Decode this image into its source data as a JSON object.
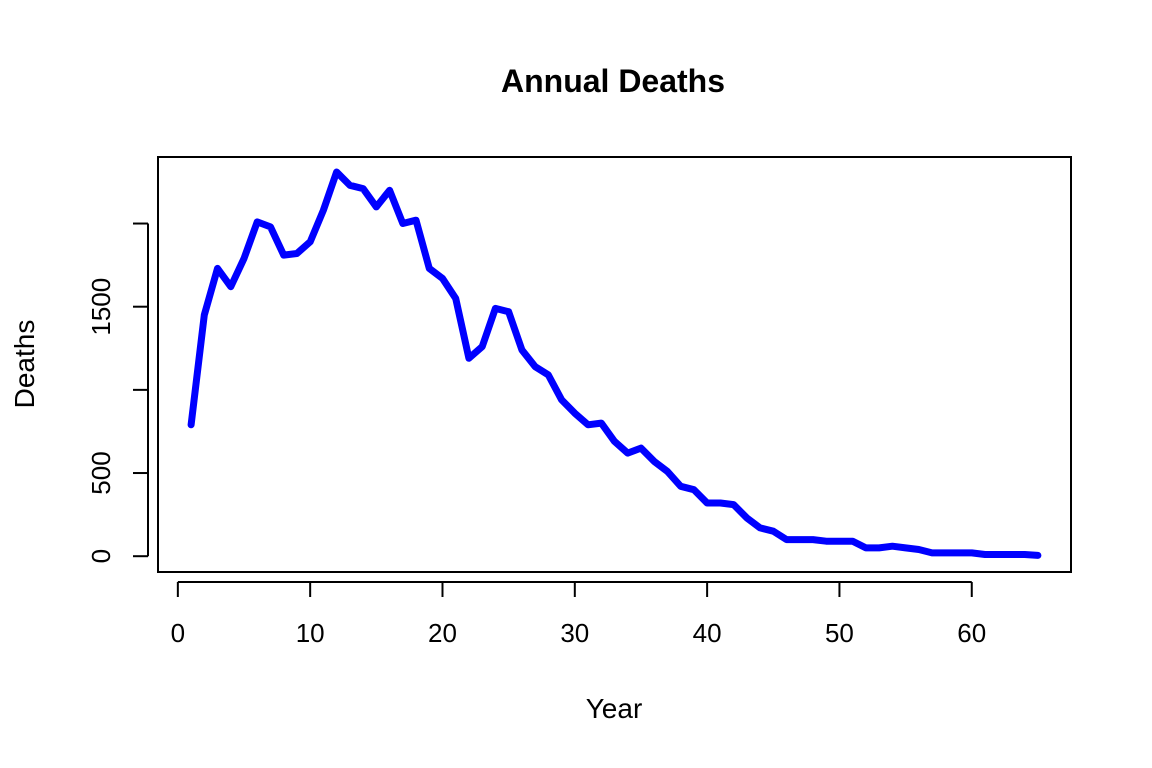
{
  "chart_data": {
    "type": "line",
    "title": "Annual Deaths",
    "xlabel": "Year",
    "ylabel": "Deaths",
    "xlim": [
      -1.5,
      67.5
    ],
    "ylim": [
      -95,
      2400
    ],
    "x_ticks": [
      0,
      10,
      20,
      30,
      40,
      50,
      60
    ],
    "y_ticks": [
      0,
      500,
      1000,
      1500,
      2000
    ],
    "y_tick_labels": [
      "0",
      "500",
      "",
      "1500",
      ""
    ],
    "line_color": "#0000ff",
    "grid": false,
    "series": [
      {
        "x": [
          1,
          2,
          3,
          4,
          5,
          6,
          7,
          8,
          9,
          10,
          11,
          12,
          13,
          14,
          15,
          16,
          17,
          18,
          19,
          20,
          21,
          22,
          23,
          24,
          25,
          26,
          27,
          28,
          29,
          30,
          31,
          32,
          33,
          34,
          35,
          36,
          37,
          38,
          39,
          40,
          41,
          42,
          43,
          44,
          45,
          46,
          47,
          48,
          49,
          50,
          51,
          52,
          53,
          54,
          55,
          56,
          57,
          58,
          59,
          60,
          61,
          62,
          63,
          64,
          65
        ],
        "y": [
          790,
          1450,
          1730,
          1620,
          1790,
          2010,
          1980,
          1810,
          1820,
          1890,
          2080,
          2310,
          2230,
          2210,
          2100,
          2200,
          2000,
          2020,
          1730,
          1670,
          1550,
          1190,
          1260,
          1490,
          1470,
          1240,
          1140,
          1090,
          940,
          860,
          790,
          800,
          690,
          620,
          650,
          570,
          510,
          420,
          400,
          320,
          320,
          310,
          230,
          170,
          150,
          100,
          100,
          100,
          90,
          90,
          90,
          50,
          50,
          60,
          50,
          40,
          20,
          20,
          20,
          20,
          10,
          10,
          10,
          10,
          5
        ]
      }
    ]
  }
}
